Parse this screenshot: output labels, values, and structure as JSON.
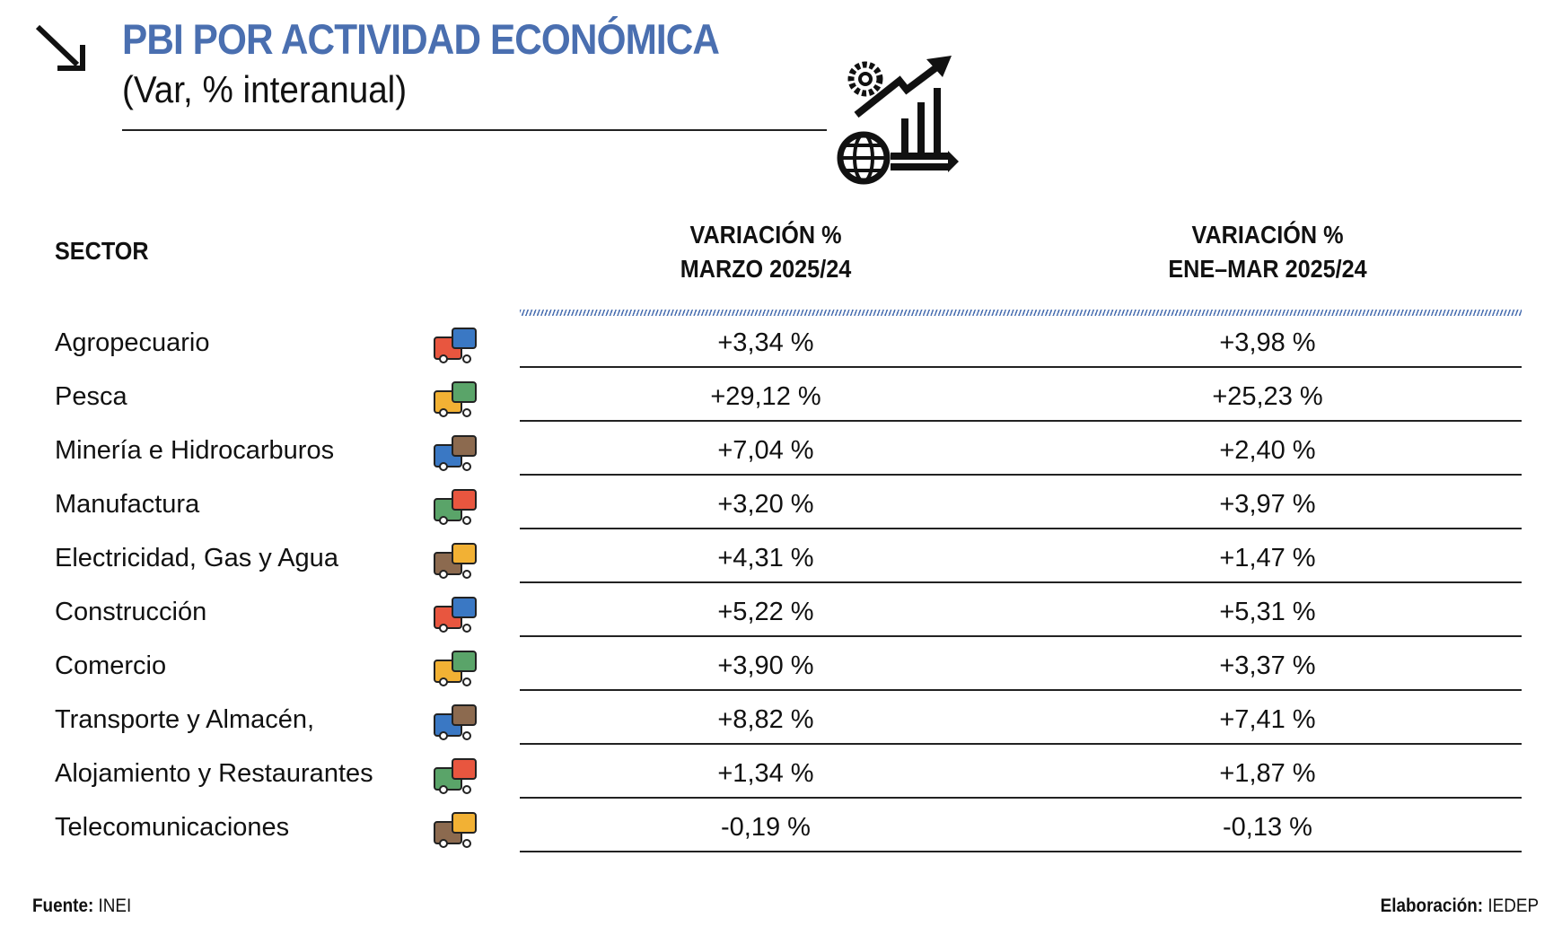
{
  "header": {
    "title": "PBI POR ACTIVIDAD ECONÓMICA",
    "subtitle": "(Var,  % interanual)",
    "arrow_icon": "arrow-down-right-icon",
    "illustration_icon": "economy-growth-chart-icon",
    "accent_color": "#4a6fb0"
  },
  "table": {
    "sector_header": "SECTOR",
    "col1_header_line1": "VARIACIÓN  %",
    "col1_header_line2": "MARZO 2025/24",
    "col2_header_line1": "VARIACIÓN  %",
    "col2_header_line2": "ENE–MAR 2025/24",
    "rows": [
      {
        "sector": "Agropecuario",
        "icon": "farm-icon",
        "marzo": "+3,34 %",
        "ene_mar": "+3,98 %"
      },
      {
        "sector": "Pesca",
        "icon": "fishing-ship-icon",
        "marzo": "+29,12 %",
        "ene_mar": "+25,23 %"
      },
      {
        "sector": "Minería e Hidrocarburos",
        "icon": "mining-truck-icon",
        "marzo": "+7,04 %",
        "ene_mar": "+2,40 %"
      },
      {
        "sector": "Manufactura",
        "icon": "factory-worker-icon",
        "marzo": "+3,20 %",
        "ene_mar": "+3,97 %"
      },
      {
        "sector": "Electricidad, Gas y Agua",
        "icon": "dam-icon",
        "marzo": "+4,31 %",
        "ene_mar": "+1,47 %"
      },
      {
        "sector": "Construcción",
        "icon": "excavator-icon",
        "marzo": "+5,22 %",
        "ene_mar": "+5,31 %"
      },
      {
        "sector": "Comercio",
        "icon": "global-trade-icon",
        "marzo": "+3,90 %",
        "ene_mar": "+3,37 %"
      },
      {
        "sector": "Transporte y Almacén,",
        "icon": "warehouse-truck-icon",
        "marzo": "+8,82 %",
        "ene_mar": "+7,41 %"
      },
      {
        "sector": "Alojamiento y Restaurantes",
        "icon": "hotel-restaurant-icon",
        "marzo": "+1,34 %",
        "ene_mar": "+1,87 %"
      },
      {
        "sector": "Telecomunicaciones",
        "icon": "satellite-icon",
        "marzo": "-0,19 %",
        "ene_mar": "-0,13 %"
      }
    ]
  },
  "footer": {
    "source_label": "Fuente:",
    "source_value": "INEI",
    "credit_label": "Elaboración:",
    "credit_value": "IEDEP"
  }
}
